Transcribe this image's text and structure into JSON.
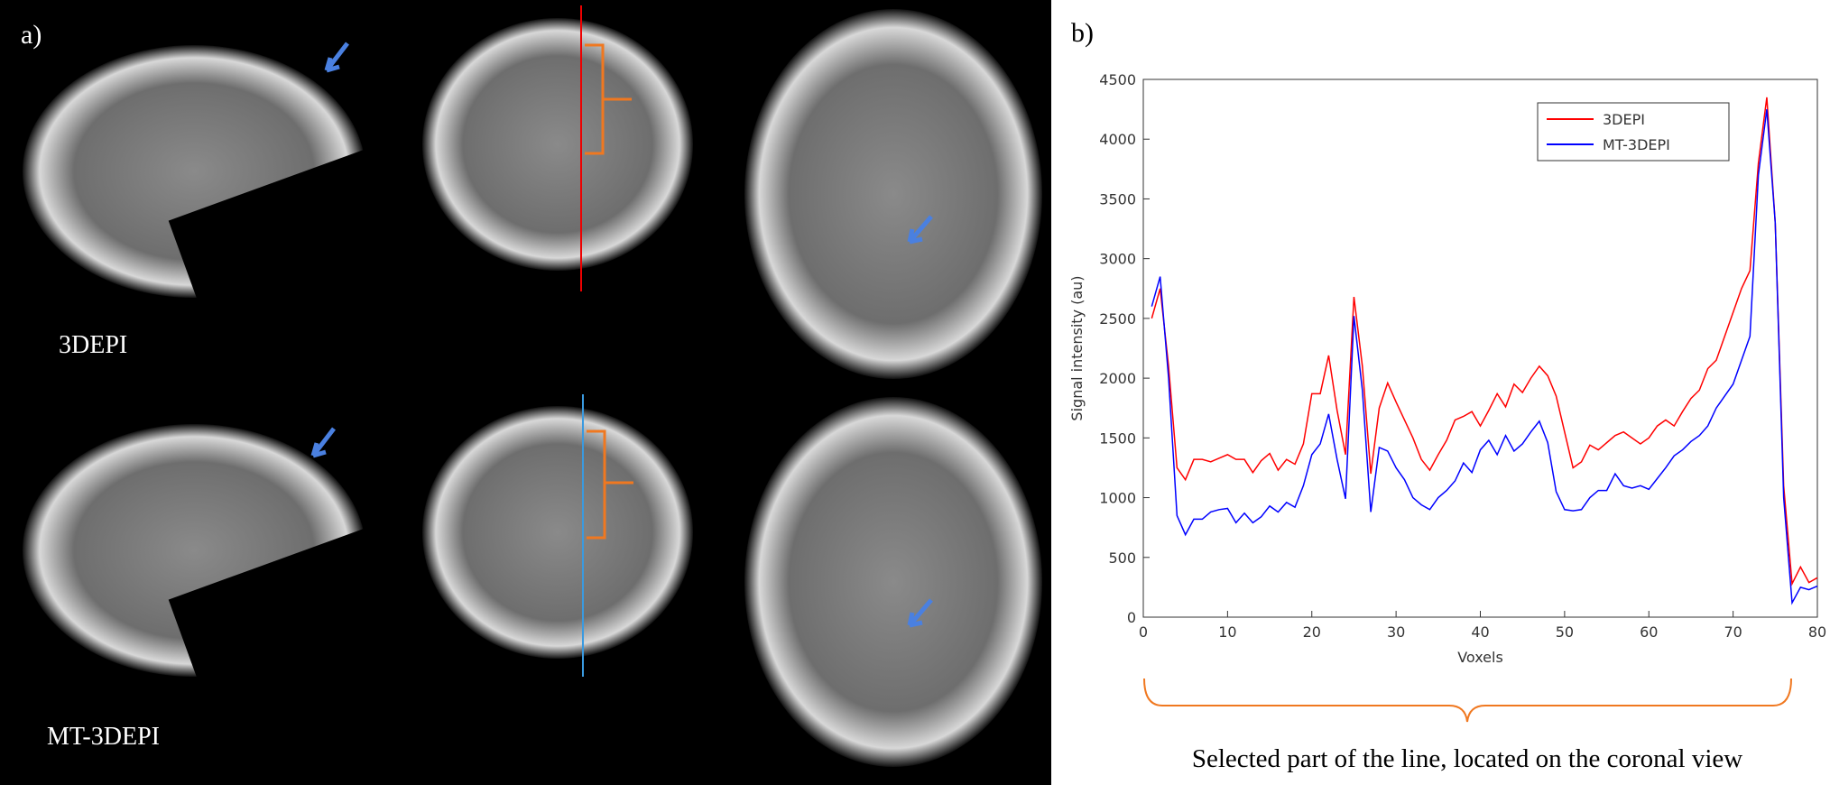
{
  "panel_a": {
    "label": "a)",
    "rows": [
      "3DEPI",
      "MT-3DEPI"
    ]
  },
  "panel_b": {
    "label": "b)",
    "caption": "Selected part of the line, located on the coronal view"
  },
  "chart_data": {
    "type": "line",
    "xlabel": "Voxels",
    "ylabel": "Signal intensity (au)",
    "x": [
      1,
      2,
      3,
      4,
      5,
      6,
      7,
      8,
      9,
      10,
      11,
      12,
      13,
      14,
      15,
      16,
      17,
      18,
      19,
      20,
      21,
      22,
      23,
      24,
      25,
      26,
      27,
      28,
      29,
      30,
      31,
      32,
      33,
      34,
      35,
      36,
      37,
      38,
      39,
      40,
      41,
      42,
      43,
      44,
      45,
      46,
      47,
      48,
      49,
      50,
      51,
      52,
      53,
      54,
      55,
      56,
      57,
      58,
      59,
      60,
      61,
      62,
      63,
      64,
      65,
      66,
      67,
      68,
      69,
      70,
      71,
      72,
      73,
      74,
      75,
      76,
      77,
      78,
      79,
      80
    ],
    "series": [
      {
        "name": "3DEPI",
        "color": "#ff0000",
        "values": [
          2500,
          2750,
          2100,
          1250,
          1150,
          1320,
          1320,
          1300,
          1330,
          1360,
          1320,
          1320,
          1210,
          1310,
          1370,
          1230,
          1320,
          1280,
          1450,
          1870,
          1870,
          2190,
          1730,
          1360,
          2680,
          2100,
          1200,
          1750,
          1960,
          1800,
          1650,
          1500,
          1320,
          1230,
          1360,
          1480,
          1650,
          1680,
          1720,
          1600,
          1730,
          1870,
          1760,
          1950,
          1880,
          2000,
          2100,
          2020,
          1850,
          1550,
          1250,
          1300,
          1440,
          1400,
          1460,
          1520,
          1550,
          1500,
          1450,
          1500,
          1600,
          1650,
          1600,
          1720,
          1830,
          1900,
          2080,
          2150,
          2350,
          2550,
          2750,
          2900,
          3800,
          4350,
          3300,
          1100,
          280,
          420,
          290,
          330
        ]
      },
      {
        "name": "MT-3DEPI",
        "color": "#0000ff",
        "values": [
          2600,
          2850,
          2000,
          850,
          690,
          820,
          820,
          880,
          900,
          910,
          790,
          870,
          790,
          840,
          930,
          880,
          960,
          920,
          1100,
          1360,
          1450,
          1700,
          1320,
          990,
          2520,
          1900,
          880,
          1420,
          1390,
          1250,
          1150,
          1000,
          940,
          900,
          1000,
          1060,
          1140,
          1290,
          1210,
          1400,
          1480,
          1360,
          1520,
          1390,
          1450,
          1550,
          1640,
          1460,
          1050,
          900,
          890,
          900,
          1000,
          1060,
          1060,
          1200,
          1100,
          1080,
          1100,
          1070,
          1160,
          1250,
          1350,
          1400,
          1470,
          1520,
          1600,
          1750,
          1850,
          1950,
          2150,
          2350,
          3700,
          4250,
          3300,
          1000,
          120,
          250,
          230,
          260
        ]
      }
    ],
    "xlim": [
      0,
      80
    ],
    "xticks": [
      0,
      10,
      20,
      30,
      40,
      50,
      60,
      70,
      80
    ],
    "ylim": [
      0,
      4500
    ],
    "yticks": [
      0,
      500,
      1000,
      1500,
      2000,
      2500,
      3000,
      3500,
      4000,
      4500
    ],
    "legend": "upper-right"
  }
}
